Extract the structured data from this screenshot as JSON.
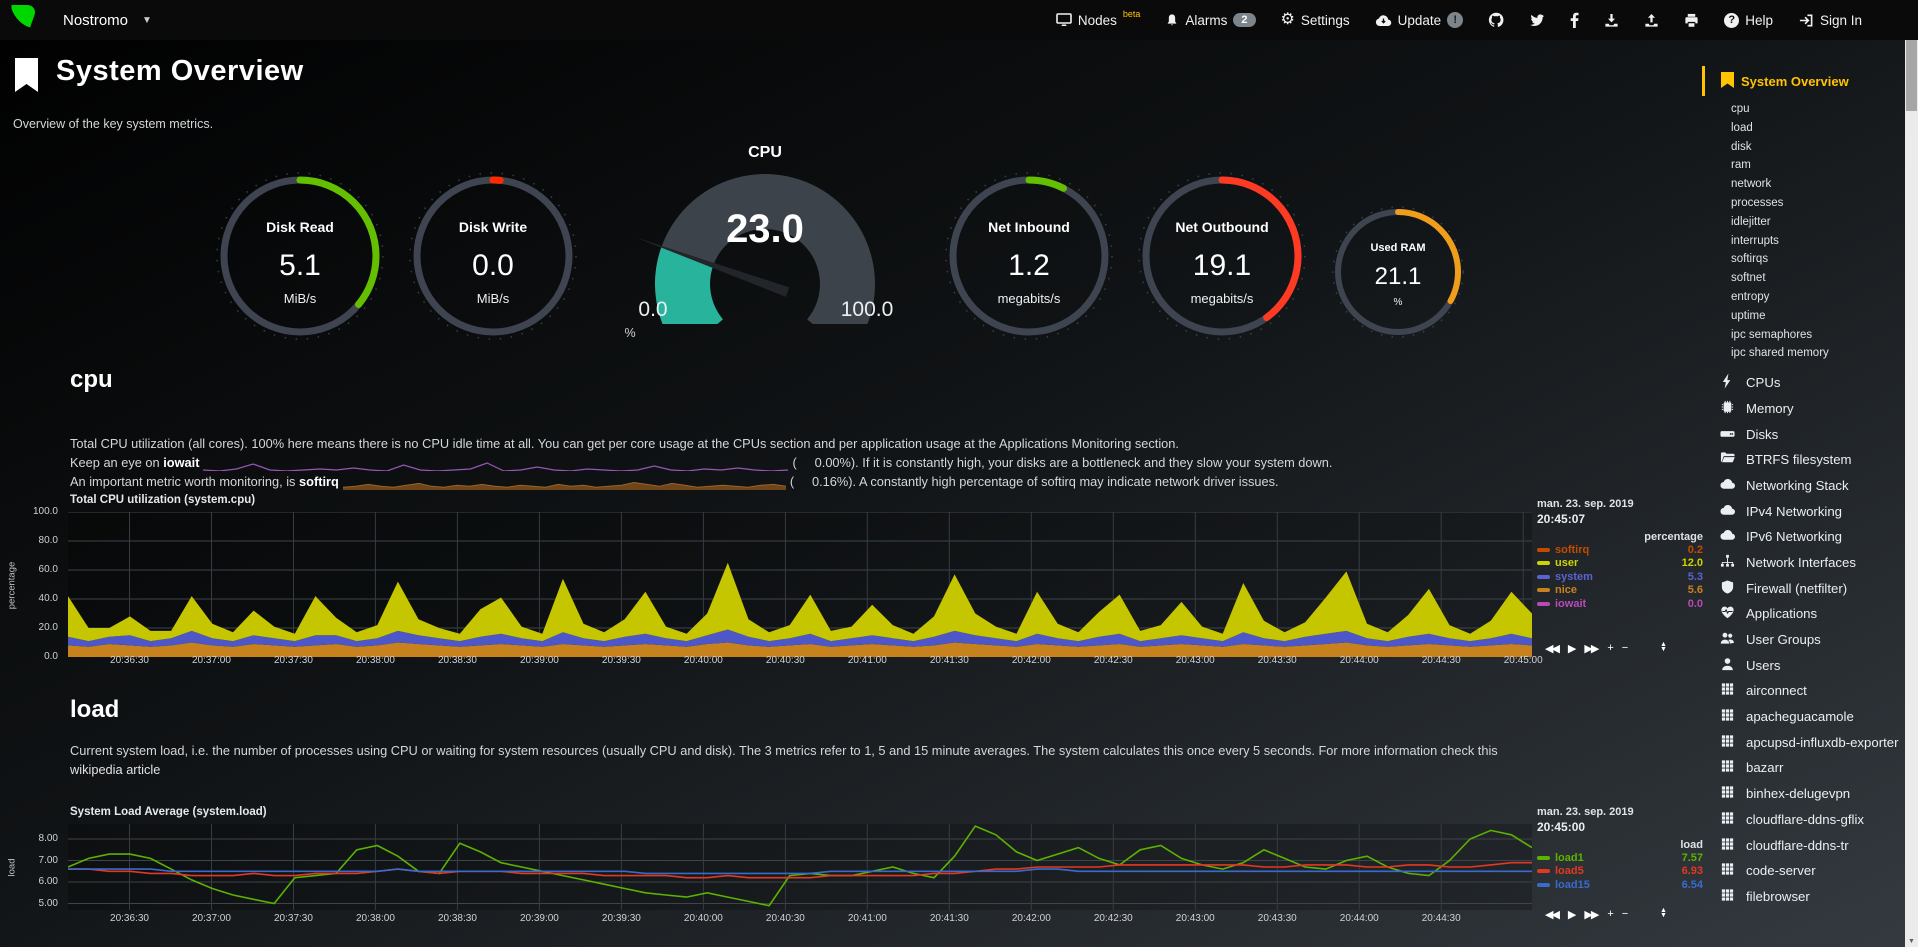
{
  "navbar": {
    "hostname": "Nostromo",
    "nodes": "Nodes",
    "nodes_beta": "beta",
    "alarms": "Alarms",
    "alarms_badge": "2",
    "settings": "Settings",
    "update": "Update",
    "update_badge": "!",
    "help": "Help",
    "signin": "Sign In",
    "icon_names": [
      "netdata-logo",
      "caret-down",
      "monitor",
      "bell",
      "gear",
      "cloud-update",
      "github",
      "twitter",
      "facebook",
      "download",
      "upload",
      "printer",
      "question-circle",
      "signin-arrow"
    ]
  },
  "header": {
    "title": "System Overview",
    "subtitle": "Overview of the key system metrics."
  },
  "gauges": [
    {
      "label": "Disk Read",
      "value": "5.1",
      "unit": "MiB/s",
      "color": "#64bf00",
      "frac": 0.36
    },
    {
      "label": "Disk Write",
      "value": "0.0",
      "unit": "MiB/s",
      "color": "#ff2a00",
      "frac": 0.015
    },
    {
      "label": "Net Inbound",
      "value": "1.2",
      "unit": "megabits/s",
      "color": "#64bf00",
      "frac": 0.075
    },
    {
      "label": "Net Outbound",
      "value": "19.1",
      "unit": "megabits/s",
      "color": "#ff3a23",
      "frac": 0.4
    },
    {
      "label": "Used RAM",
      "value": "21.1",
      "unit": "%",
      "color": "#ef9d1b",
      "frac": 0.33
    }
  ],
  "cpu_gauge": {
    "title": "CPU",
    "value": "23.0",
    "min": "0.0",
    "max": "100.0",
    "unit": "%",
    "frac": 0.23,
    "fill": "#28b49c"
  },
  "cpu_section": {
    "heading": "cpu",
    "line1": "Total CPU utilization (all cores). 100% here means there is no CPU idle time at all. You can get per core usage at the CPUs section and per application usage at the Applications Monitoring section.",
    "line2_pre": "Keep an eye on ",
    "line2_bold": "iowait",
    "line2_open": "(",
    "line2_val": "0.00%).",
    "line2_post": " If it is constantly high, your disks are a bottleneck and they slow your system down.",
    "line3_pre": "An important metric worth monitoring, is ",
    "line3_bold": "softirq",
    "line3_open": "(",
    "line3_val": "0.16%).",
    "line3_post": " A constantly high percentage of softirq may indicate network driver issues."
  },
  "load_section": {
    "heading": "load",
    "desc": "Current system load, i.e. the number of processes using CPU or waiting for system resources (usually CPU and disk). The 3 metrics refer to 1, 5 and 15 minute averages. The system calculates this once every 5 seconds. For more information check this",
    "link": "wikipedia article"
  },
  "chart_toolbar": [
    {
      "name": "pan-backward",
      "glyph": "◀◀"
    },
    {
      "name": "play",
      "glyph": "▶"
    },
    {
      "name": "pan-forward",
      "glyph": "▶▶"
    },
    {
      "name": "zoom-in",
      "glyph": "+"
    },
    {
      "name": "zoom-out",
      "glyph": "−"
    }
  ],
  "chart_data": [
    {
      "id": "cpu-plot",
      "type": "stacked-area",
      "title": "Total CPU utilization (system.cpu)",
      "ylabel": "percentage",
      "date": "man. 23. sep. 2019",
      "time": "20:45:07",
      "legend_header": "percentage",
      "ylim": [
        0,
        100
      ],
      "ytick_labels": [
        "100.0",
        "80.0",
        "60.0",
        "40.0",
        "20.0",
        "0.0"
      ],
      "ytick_values": [
        100,
        80,
        60,
        40,
        20,
        0
      ],
      "x0": 0.042,
      "xstep": 0.056,
      "xticks": [
        "20:36:30",
        "20:37:00",
        "20:37:30",
        "20:38:00",
        "20:38:30",
        "20:39:00",
        "20:39:30",
        "20:40:00",
        "20:40:30",
        "20:41:00",
        "20:41:30",
        "20:42:00",
        "20:42:30",
        "20:43:00",
        "20:43:30",
        "20:44:00",
        "20:44:30",
        "20:45:00"
      ],
      "legend": [
        {
          "name": "softirq",
          "value": "0.2",
          "color": "#c44a00"
        },
        {
          "name": "user",
          "value": "12.0",
          "color": "#cdd300"
        },
        {
          "name": "system",
          "value": "5.3",
          "color": "#5b62d2"
        },
        {
          "name": "nice",
          "value": "5.6",
          "color": "#c7821e"
        },
        {
          "name": "iowait",
          "value": "0.0",
          "color": "#b84ab8"
        }
      ],
      "series": [
        {
          "name": "nice",
          "color": "#c7821e",
          "values": [
            8,
            7,
            9,
            8,
            7,
            8,
            10,
            8,
            7,
            9,
            8,
            7,
            8,
            9,
            7,
            8,
            10,
            9,
            8,
            7,
            8,
            9,
            8,
            7,
            9,
            8,
            7,
            8,
            9,
            8,
            7,
            9,
            10,
            8,
            7,
            8,
            9,
            7,
            8,
            9,
            8,
            7,
            8,
            10,
            9,
            8,
            7,
            9,
            8,
            7,
            8,
            9,
            7,
            8,
            9,
            8,
            7,
            9,
            8,
            7,
            8,
            9,
            10,
            8,
            7,
            8,
            9,
            8,
            7,
            8,
            9,
            8
          ]
        },
        {
          "name": "system",
          "color": "#4d57c8",
          "values": [
            6,
            4,
            5,
            7,
            4,
            5,
            8,
            5,
            4,
            6,
            5,
            4,
            7,
            6,
            4,
            5,
            8,
            6,
            5,
            4,
            6,
            7,
            5,
            4,
            8,
            5,
            4,
            6,
            7,
            5,
            4,
            6,
            9,
            6,
            4,
            5,
            7,
            4,
            5,
            6,
            5,
            4,
            6,
            8,
            6,
            5,
            4,
            7,
            5,
            4,
            6,
            7,
            4,
            5,
            6,
            5,
            4,
            8,
            5,
            4,
            6,
            7,
            8,
            5,
            4,
            6,
            7,
            5,
            4,
            5,
            7,
            5
          ]
        },
        {
          "name": "user",
          "color": "#c5c500",
          "values": [
            28,
            9,
            6,
            13,
            7,
            5,
            24,
            10,
            6,
            17,
            8,
            5,
            27,
            12,
            6,
            9,
            34,
            11,
            7,
            5,
            19,
            25,
            8,
            5,
            37,
            10,
            6,
            12,
            29,
            8,
            5,
            15,
            46,
            12,
            6,
            9,
            27,
            7,
            8,
            21,
            9,
            5,
            14,
            39,
            15,
            8,
            5,
            29,
            10,
            6,
            17,
            27,
            7,
            9,
            23,
            8,
            5,
            34,
            12,
            6,
            10,
            25,
            41,
            10,
            6,
            15,
            31,
            9,
            5,
            12,
            29,
            17
          ]
        }
      ]
    },
    {
      "id": "load-plot",
      "type": "lines",
      "title": "System Load Average (system.load)",
      "ylabel": "load",
      "date": "man. 23. sep. 2019",
      "time": "20:45:00",
      "legend_header": "load",
      "ylim": [
        4.7,
        8.7
      ],
      "ytick_labels": [
        "8.00",
        "7.00",
        "6.00",
        "5.00"
      ],
      "ytick_values": [
        8,
        7,
        6,
        5
      ],
      "x0": 0.042,
      "xstep": 0.056,
      "xticks": [
        "20:36:30",
        "20:37:00",
        "20:37:30",
        "20:38:00",
        "20:38:30",
        "20:39:00",
        "20:39:30",
        "20:40:00",
        "20:40:30",
        "20:41:00",
        "20:41:30",
        "20:42:00",
        "20:42:30",
        "20:43:00",
        "20:43:30",
        "20:44:00",
        "20:44:30"
      ],
      "legend": [
        {
          "name": "load1",
          "value": "7.57",
          "color": "#5cb200"
        },
        {
          "name": "load5",
          "value": "6.93",
          "color": "#e33822"
        },
        {
          "name": "load15",
          "value": "6.54",
          "color": "#3a6bcc"
        }
      ],
      "series": [
        {
          "name": "load1",
          "color": "#5cb200",
          "values": [
            6.7,
            7.1,
            7.3,
            7.3,
            7.1,
            6.6,
            6.1,
            5.7,
            5.4,
            5.2,
            5.0,
            6.2,
            6.3,
            6.4,
            7.5,
            7.7,
            7.2,
            6.5,
            6.4,
            7.8,
            7.4,
            6.9,
            6.7,
            6.5,
            6.3,
            6.1,
            5.9,
            5.7,
            5.5,
            5.4,
            5.3,
            5.5,
            5.3,
            5.1,
            4.9,
            6.3,
            6.4,
            6.3,
            6.3,
            6.5,
            6.7,
            6.4,
            6.2,
            7.2,
            8.6,
            8.2,
            7.4,
            7.0,
            7.3,
            7.6,
            7.1,
            6.8,
            7.5,
            7.7,
            7.1,
            6.8,
            6.6,
            6.9,
            7.5,
            7.1,
            6.7,
            6.6,
            7.0,
            7.2,
            6.7,
            6.4,
            6.3,
            7.0,
            8.0,
            8.4,
            8.2,
            7.6
          ]
        },
        {
          "name": "load5",
          "color": "#e33822",
          "values": [
            6.6,
            6.6,
            6.5,
            6.5,
            6.4,
            6.4,
            6.3,
            6.3,
            6.3,
            6.4,
            6.3,
            6.3,
            6.4,
            6.4,
            6.4,
            6.5,
            6.6,
            6.5,
            6.4,
            6.5,
            6.5,
            6.5,
            6.4,
            6.4,
            6.4,
            6.4,
            6.3,
            6.3,
            6.3,
            6.3,
            6.2,
            6.2,
            6.3,
            6.2,
            6.2,
            6.2,
            6.2,
            6.3,
            6.3,
            6.3,
            6.3,
            6.3,
            6.4,
            6.4,
            6.5,
            6.6,
            6.6,
            6.7,
            6.7,
            6.7,
            6.7,
            6.8,
            6.8,
            6.8,
            6.8,
            6.8,
            6.8,
            6.8,
            6.7,
            6.7,
            6.8,
            6.8,
            6.8,
            6.7,
            6.7,
            6.8,
            6.8,
            6.7,
            6.7,
            6.8,
            6.9,
            6.9
          ]
        },
        {
          "name": "load15",
          "color": "#3a6bcc",
          "values": [
            6.6,
            6.6,
            6.6,
            6.6,
            6.6,
            6.5,
            6.5,
            6.5,
            6.5,
            6.5,
            6.5,
            6.5,
            6.5,
            6.5,
            6.5,
            6.5,
            6.6,
            6.5,
            6.5,
            6.5,
            6.5,
            6.5,
            6.5,
            6.5,
            6.5,
            6.5,
            6.5,
            6.5,
            6.4,
            6.4,
            6.4,
            6.4,
            6.4,
            6.4,
            6.4,
            6.4,
            6.4,
            6.5,
            6.5,
            6.5,
            6.5,
            6.5,
            6.5,
            6.5,
            6.5,
            6.5,
            6.5,
            6.6,
            6.6,
            6.5,
            6.5,
            6.5,
            6.5,
            6.5,
            6.5,
            6.5,
            6.5,
            6.5,
            6.5,
            6.5,
            6.5,
            6.5,
            6.5,
            6.5,
            6.5,
            6.5,
            6.5,
            6.5,
            6.5,
            6.5,
            6.5,
            6.5
          ]
        }
      ]
    },
    {
      "id": "iowait-spark",
      "type": "spark-line",
      "color": "#9a55b8",
      "ylim": [
        0,
        14
      ],
      "values": [
        1,
        0,
        2,
        7,
        1,
        0,
        1,
        2,
        1,
        3,
        1,
        0,
        6,
        1,
        0,
        1,
        2,
        8,
        0,
        1,
        4,
        1,
        0,
        2,
        1,
        0,
        1,
        5,
        1,
        0,
        2,
        1,
        3,
        1,
        0,
        1
      ]
    },
    {
      "id": "softirq-spark",
      "type": "spark-fill",
      "color": "#9a6428",
      "fill": "#6e4518",
      "ylim": [
        0,
        16
      ],
      "values": [
        3,
        4,
        6,
        4,
        3,
        5,
        7,
        4,
        3,
        5,
        4,
        6,
        4,
        3,
        5,
        4,
        3,
        6,
        4,
        5,
        3,
        4,
        5,
        8,
        6,
        4,
        7,
        5,
        3,
        4,
        5,
        4,
        3,
        5,
        6,
        4
      ]
    }
  ],
  "sidebar": {
    "active": "System Overview",
    "subitems": [
      "cpu",
      "load",
      "disk",
      "ram",
      "network",
      "processes",
      "idlejitter",
      "interrupts",
      "softirqs",
      "softnet",
      "entropy",
      "uptime",
      "ipc semaphores",
      "ipc shared memory"
    ],
    "sections": [
      {
        "icon": "bolt",
        "label": "CPUs"
      },
      {
        "icon": "microchip",
        "label": "Memory"
      },
      {
        "icon": "hdd",
        "label": "Disks"
      },
      {
        "icon": "folder-open",
        "label": "BTRFS filesystem"
      },
      {
        "icon": "cloud",
        "label": "Networking Stack"
      },
      {
        "icon": "cloud",
        "label": "IPv4 Networking"
      },
      {
        "icon": "cloud",
        "label": "IPv6 Networking"
      },
      {
        "icon": "sitemap",
        "label": "Network Interfaces"
      },
      {
        "icon": "shield",
        "label": "Firewall (netfilter)"
      },
      {
        "icon": "heartbeat",
        "label": "Applications"
      },
      {
        "icon": "users",
        "label": "User Groups"
      },
      {
        "icon": "user",
        "label": "Users"
      },
      {
        "icon": "grid",
        "label": "airconnect"
      },
      {
        "icon": "grid",
        "label": "apacheguacamole"
      },
      {
        "icon": "grid",
        "label": "apcupsd-influxdb-exporter"
      },
      {
        "icon": "grid",
        "label": "bazarr"
      },
      {
        "icon": "grid",
        "label": "binhex-delugevpn"
      },
      {
        "icon": "grid",
        "label": "cloudflare-ddns-gflix"
      },
      {
        "icon": "grid",
        "label": "cloudflare-ddns-tr"
      },
      {
        "icon": "grid",
        "label": "code-server"
      },
      {
        "icon": "grid",
        "label": "filebrowser"
      }
    ]
  }
}
